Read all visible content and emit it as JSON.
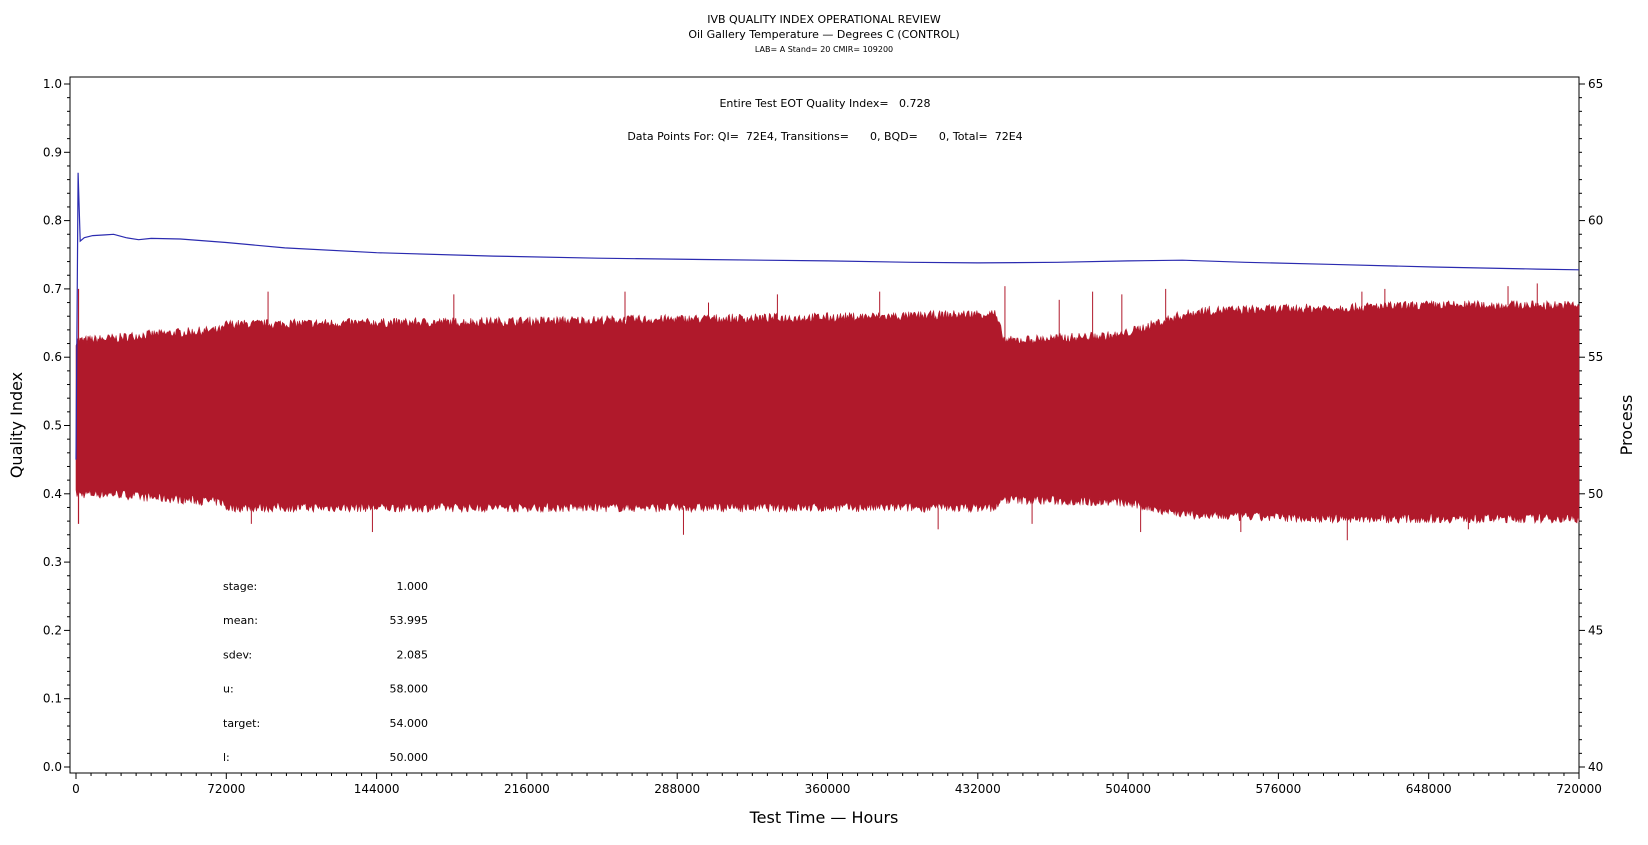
{
  "chart_data": {
    "type": "line",
    "title": "IVB QUALITY INDEX OPERATIONAL REVIEW",
    "subtitle": "Oil Gallery Temperature — Degrees C (CONTROL)",
    "subtitle2": "LAB= A Stand= 20 CMIR= 109200",
    "annotation_qi": "Entire Test EOT Quality Index=   0.728",
    "annotation_points": "Data Points For: QI=  72E4, Transitions=      0, BQD=      0, Total=  72E4",
    "xlabel": "Test Time — Hours",
    "ylabel": "Quality Index",
    "y2label": "Process",
    "xlim": [
      0,
      720000
    ],
    "ylim": [
      0.0,
      1.0
    ],
    "y2lim": [
      40,
      65
    ],
    "xticks": [
      "0",
      "72000",
      "144000",
      "216000",
      "288000",
      "360000",
      "432000",
      "504000",
      "576000",
      "648000",
      "720000"
    ],
    "yticks": [
      "0.0",
      "0.1",
      "0.2",
      "0.3",
      "0.4",
      "0.5",
      "0.6",
      "0.7",
      "0.8",
      "0.9",
      "1.0"
    ],
    "y2ticks": [
      "40",
      "45",
      "50",
      "55",
      "60",
      "65"
    ],
    "series": [
      {
        "axis": "left",
        "color": "#2b2bb0",
        "x": [
          0,
          1000,
          2000,
          4000,
          8000,
          14000,
          18000,
          24000,
          30000,
          36000,
          50000,
          72000,
          100000,
          144000,
          200000,
          250000,
          300000,
          360000,
          400000,
          432000,
          470000,
          504000,
          530000,
          560000,
          600000,
          650000,
          700000,
          720000
        ],
        "values": [
          0.45,
          0.87,
          0.77,
          0.775,
          0.778,
          0.779,
          0.78,
          0.775,
          0.772,
          0.774,
          0.773,
          0.768,
          0.76,
          0.753,
          0.748,
          0.745,
          0.743,
          0.741,
          0.739,
          0.738,
          0.739,
          0.741,
          0.742,
          0.739,
          0.736,
          0.732,
          0.729,
          0.728
        ]
      },
      {
        "axis": "right",
        "color": "#b0192b",
        "band_x": [
          0,
          20000,
          30000,
          70000,
          72000,
          200000,
          300000,
          400000,
          440000,
          445000,
          500000,
          528000,
          540000,
          600000,
          650000,
          720000
        ],
        "band_high": [
          55.6,
          55.7,
          55.8,
          56.0,
          56.2,
          56.3,
          56.4,
          56.5,
          56.6,
          55.6,
          55.8,
          56.5,
          56.7,
          56.8,
          56.9,
          56.9
        ],
        "band_low": [
          50.0,
          50.0,
          49.9,
          49.7,
          49.5,
          49.5,
          49.5,
          49.5,
          49.5,
          49.8,
          49.7,
          49.3,
          49.2,
          49.1,
          49.1,
          49.1
        ],
        "spikes_x": [
          92000,
          181000,
          263000,
          303000,
          336000,
          385000,
          445000,
          471000,
          487000,
          501000,
          522000,
          616000,
          627000,
          686000,
          700000,
          84000,
          142000,
          291000,
          413000,
          458000,
          510000,
          558000,
          609000,
          667000
        ],
        "spikes_y": [
          57.4,
          57.3,
          57.4,
          57.0,
          57.3,
          57.4,
          57.6,
          57.1,
          57.4,
          57.3,
          57.5,
          57.4,
          57.5,
          57.6,
          57.7,
          48.9,
          48.6,
          48.5,
          48.7,
          48.9,
          48.6,
          48.6,
          48.3,
          48.7
        ]
      }
    ]
  },
  "stats": [
    {
      "label": "stage:",
      "value": "1.000"
    },
    {
      "label": "mean:",
      "value": "53.995"
    },
    {
      "label": "sdev:",
      "value": "2.085"
    },
    {
      "label": "u:",
      "value": "58.000"
    },
    {
      "label": "target:",
      "value": "54.000"
    },
    {
      "label": "l:",
      "value": "50.000"
    }
  ]
}
